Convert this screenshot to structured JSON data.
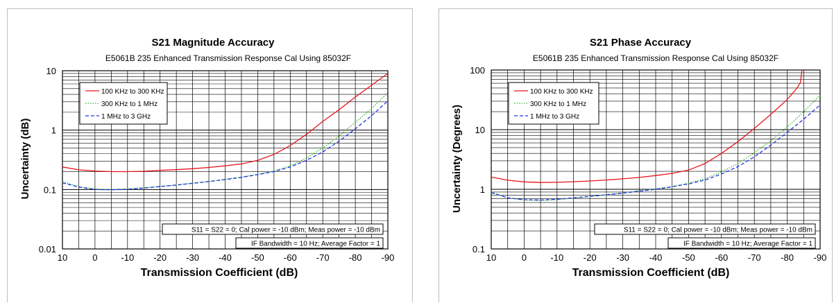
{
  "chart_data": [
    {
      "type": "line",
      "title": "S21 Magnitude Accuracy",
      "subtitle": "E5061B 235 Enhanced Transmission Response Cal Using 85032F",
      "xlabel": "Transmission Coefficient (dB)",
      "ylabel": "Uncertainty (dB)",
      "xlim": [
        10,
        -90
      ],
      "ylim": [
        0.01,
        10
      ],
      "yscale": "log",
      "x_ticks": [
        "10",
        "0",
        "-10",
        "-20",
        "-30",
        "-40",
        "-50",
        "-60",
        "-70",
        "-80",
        "-90"
      ],
      "y_ticks": [
        "10",
        "1",
        "0.1",
        "0.01"
      ],
      "grid": true,
      "legend": "top-left",
      "notes": [
        "S11 = S22 = 0; Cal power = -10 dBm; Meas power = -10 dBm",
        "IF Bandwidth = 10 Hz; Average Factor = 1"
      ],
      "series": [
        {
          "name": "100 KHz to 300 KHz",
          "color": "#e8141a",
          "style": "solid",
          "x": [
            10,
            5,
            0,
            -5,
            -10,
            -15,
            -20,
            -25,
            -30,
            -35,
            -40,
            -45,
            -50,
            -55,
            -60,
            -65,
            -70,
            -75,
            -80,
            -85,
            -90
          ],
          "y": [
            0.24,
            0.215,
            0.205,
            0.2,
            0.2,
            0.203,
            0.21,
            0.216,
            0.224,
            0.235,
            0.25,
            0.27,
            0.31,
            0.39,
            0.55,
            0.85,
            1.4,
            2.2,
            3.6,
            5.7,
            9.0
          ]
        },
        {
          "name": "300 KHz to 1 MHz",
          "color": "#30b030",
          "style": "dotted",
          "x": [
            10,
            5,
            0,
            -5,
            -10,
            -15,
            -20,
            -25,
            -30,
            -35,
            -40,
            -45,
            -50,
            -55,
            -60,
            -65,
            -70,
            -75,
            -80,
            -85,
            -90
          ],
          "y": [
            0.135,
            0.112,
            0.102,
            0.1,
            0.102,
            0.107,
            0.113,
            0.12,
            0.128,
            0.137,
            0.148,
            0.162,
            0.18,
            0.205,
            0.25,
            0.34,
            0.5,
            0.8,
            1.35,
            2.3,
            4.3
          ]
        },
        {
          "name": "1 MHz to 3 GHz",
          "color": "#2030e8",
          "style": "dashed",
          "x": [
            10,
            5,
            0,
            -5,
            -10,
            -15,
            -20,
            -25,
            -30,
            -35,
            -40,
            -45,
            -50,
            -55,
            -60,
            -65,
            -70,
            -75,
            -80,
            -85,
            -90
          ],
          "y": [
            0.13,
            0.11,
            0.1,
            0.099,
            0.101,
            0.106,
            0.112,
            0.119,
            0.127,
            0.136,
            0.147,
            0.16,
            0.178,
            0.2,
            0.24,
            0.31,
            0.43,
            0.65,
            1.05,
            1.75,
            3.1
          ]
        }
      ]
    },
    {
      "type": "line",
      "title": "S21 Phase Accuracy",
      "subtitle": "E5061B 235 Enhanced Transmission Response Cal Using 85032F",
      "xlabel": "Transmission Coefficient (dB)",
      "ylabel": "Uncertainty (Degrees)",
      "xlim": [
        10,
        -90
      ],
      "ylim": [
        0.1,
        100
      ],
      "yscale": "log",
      "x_ticks": [
        "10",
        "0",
        "-10",
        "-20",
        "-30",
        "-40",
        "-50",
        "-60",
        "-70",
        "-80",
        "-90"
      ],
      "y_ticks": [
        "100",
        "10",
        "1",
        "0.1"
      ],
      "grid": true,
      "legend": "top-left",
      "notes": [
        "S11 = S22 = 0; Cal power = -10 dBm; Meas power = -10 dBm",
        "IF Bandwidth = 10 Hz; Average Factor = 1"
      ],
      "series": [
        {
          "name": "100 KHz to 300 KHz",
          "color": "#e8141a",
          "style": "solid",
          "x": [
            10,
            5,
            0,
            -5,
            -10,
            -15,
            -20,
            -25,
            -30,
            -35,
            -40,
            -45,
            -50,
            -55,
            -60,
            -65,
            -70,
            -75,
            -80,
            -83,
            -84,
            -84.5
          ],
          "y": [
            1.6,
            1.42,
            1.33,
            1.3,
            1.31,
            1.34,
            1.38,
            1.43,
            1.5,
            1.58,
            1.7,
            1.85,
            2.1,
            2.7,
            4.0,
            6.3,
            10.5,
            18,
            32,
            50,
            62,
            100
          ]
        },
        {
          "name": "300 KHz to 1 MHz",
          "color": "#30b030",
          "style": "dotted",
          "x": [
            10,
            5,
            0,
            -5,
            -10,
            -15,
            -20,
            -25,
            -30,
            -35,
            -40,
            -45,
            -50,
            -55,
            -60,
            -65,
            -70,
            -75,
            -80,
            -85,
            -90
          ],
          "y": [
            0.9,
            0.72,
            0.66,
            0.65,
            0.67,
            0.71,
            0.76,
            0.81,
            0.87,
            0.94,
            1.02,
            1.12,
            1.27,
            1.5,
            1.95,
            2.7,
            4.1,
            6.5,
            11,
            20,
            38
          ]
        },
        {
          "name": "1 MHz to 3 GHz",
          "color": "#2030e8",
          "style": "dashed",
          "x": [
            10,
            5,
            0,
            -5,
            -10,
            -15,
            -20,
            -25,
            -30,
            -35,
            -40,
            -45,
            -50,
            -55,
            -60,
            -65,
            -70,
            -75,
            -80,
            -85,
            -90
          ],
          "y": [
            0.88,
            0.72,
            0.67,
            0.66,
            0.68,
            0.72,
            0.76,
            0.81,
            0.86,
            0.93,
            1.0,
            1.1,
            1.23,
            1.43,
            1.8,
            2.4,
            3.5,
            5.5,
            9.0,
            15,
            26
          ]
        }
      ]
    }
  ]
}
